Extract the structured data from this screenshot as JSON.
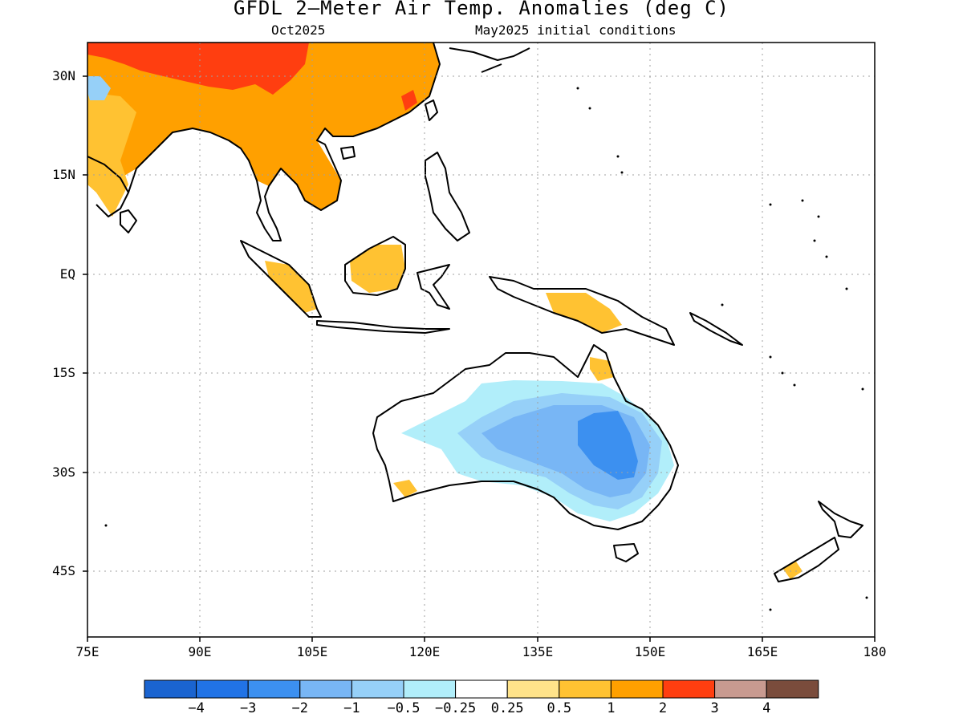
{
  "title": "GFDL 2—Meter Air Temp. Anomalies (deg C)",
  "subtitle_left": "Oct2025",
  "subtitle_right": "May2025 initial conditions",
  "lat_labels": [
    "30N",
    "15N",
    "EQ",
    "15S",
    "30S",
    "45S"
  ],
  "lon_labels": [
    "75E",
    "90E",
    "105E",
    "120E",
    "135E",
    "150E",
    "165E",
    "180"
  ],
  "colorbar": {
    "colors": [
      "#1a64d0",
      "#2173e6",
      "#3c90f0",
      "#78b6f5",
      "#96d0f8",
      "#b1eefa",
      "#ffffff",
      "#ffe38a",
      "#ffc232",
      "#ffa000",
      "#ff3e10",
      "#c89a90",
      "#7a4c3c"
    ],
    "labels": [
      "−4",
      "−3",
      "−2",
      "−1",
      "−0.5",
      "−0.25",
      "0.25",
      "0.5",
      "1",
      "2",
      "3",
      "4"
    ]
  },
  "anomaly_regions": [
    {
      "name": "asia-warm",
      "level": "1 to 2"
    },
    {
      "name": "tibet-hot",
      "level": "2 to 3"
    },
    {
      "name": "indochina-warm",
      "level": "1 to 2"
    },
    {
      "name": "australia-cold",
      "level": "-2 to -1"
    },
    {
      "name": "australia-core-cold",
      "level": "-3 to -2"
    }
  ]
}
